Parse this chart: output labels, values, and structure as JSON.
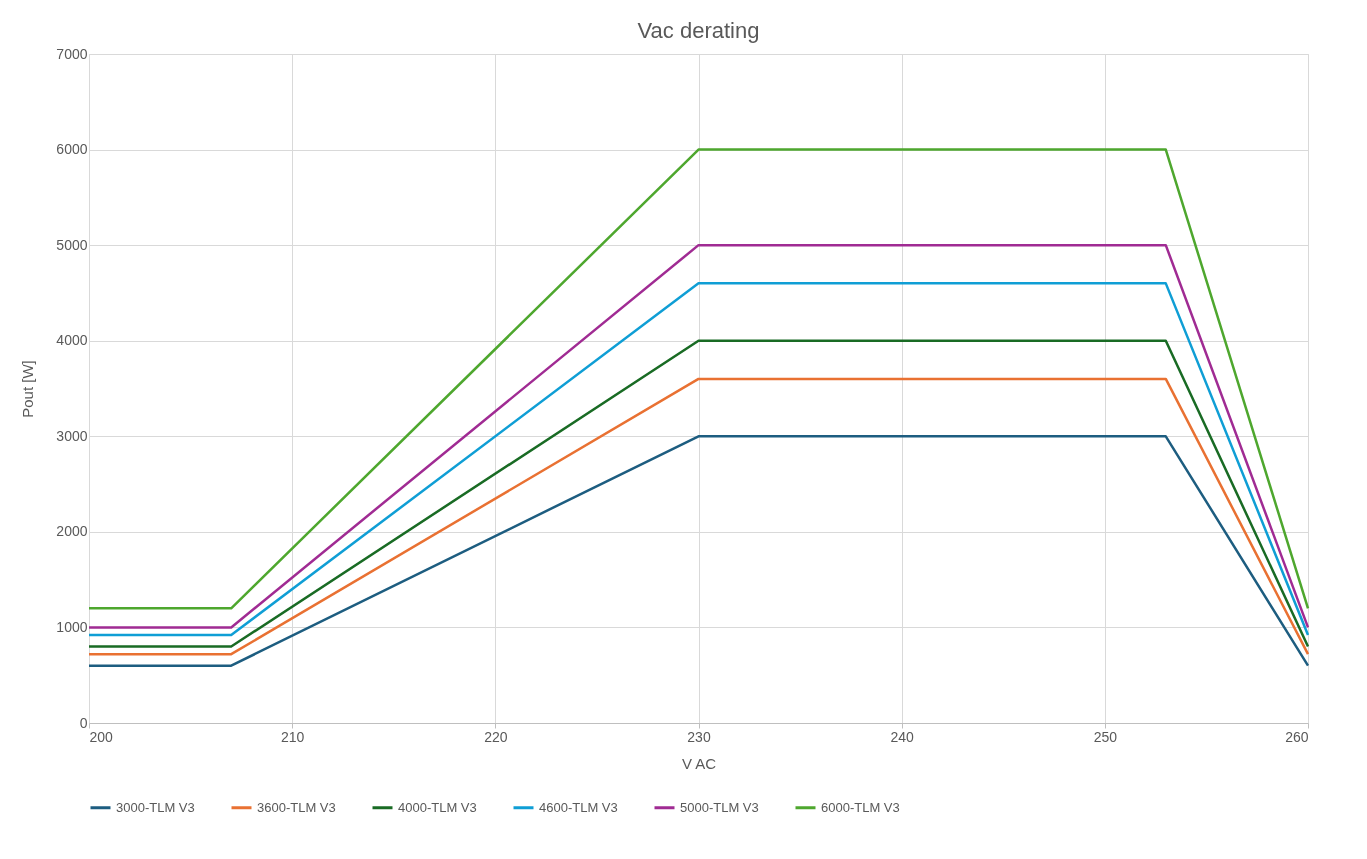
{
  "chart_data": {
    "type": "line",
    "title": "Vac derating",
    "xlabel": "V AC",
    "ylabel": "Pout [W]",
    "x": [
      200,
      207,
      230,
      253,
      260
    ],
    "series": [
      {
        "name": "3000-TLM V3",
        "color": "#1d5d80",
        "values": [
          600,
          600,
          3000,
          3000,
          600
        ]
      },
      {
        "name": "3600-TLM V3",
        "color": "#e97132",
        "values": [
          720,
          720,
          3600,
          3600,
          720
        ]
      },
      {
        "name": "4000-TLM V3",
        "color": "#196b24",
        "values": [
          800,
          800,
          4000,
          4000,
          800
        ]
      },
      {
        "name": "4600-TLM V3",
        "color": "#0f9ed5",
        "values": [
          920,
          920,
          4600,
          4600,
          920
        ]
      },
      {
        "name": "5000-TLM V3",
        "color": "#a02b93",
        "values": [
          1000,
          1000,
          5000,
          5000,
          1000
        ]
      },
      {
        "name": "6000-TLM V3",
        "color": "#4ea72e",
        "values": [
          1200,
          1200,
          6000,
          6000,
          1200
        ]
      }
    ],
    "xlim": [
      200,
      260
    ],
    "xticks": [
      200,
      210,
      220,
      230,
      240,
      250,
      260
    ],
    "ylim": [
      0,
      7000
    ],
    "yticks": [
      0,
      1000,
      2000,
      3000,
      4000,
      5000,
      6000,
      7000
    ],
    "grid": true,
    "legend": "bottom",
    "marker": "none",
    "line_style": "solid"
  }
}
